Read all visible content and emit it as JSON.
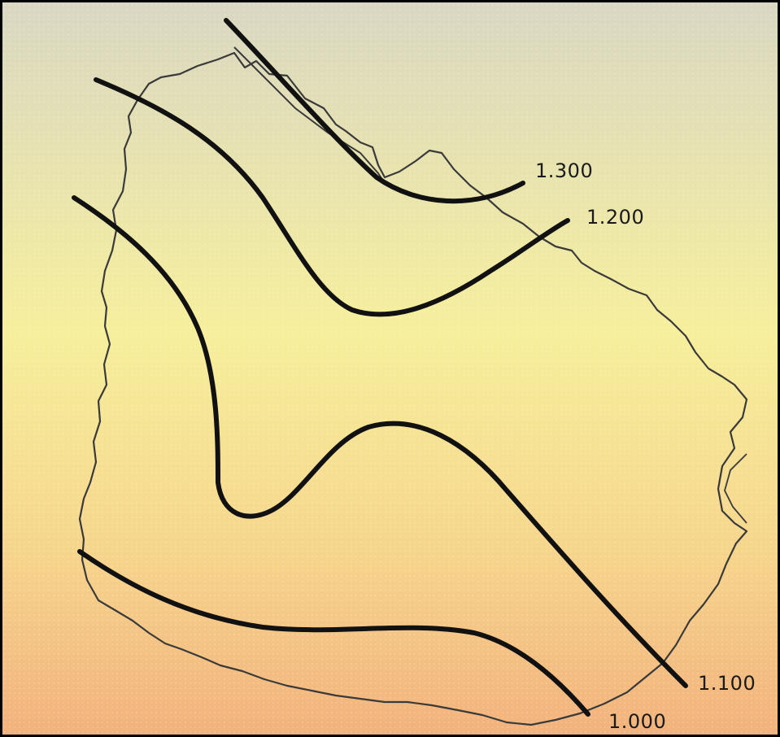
{
  "map": {
    "background_top": "#d9d7c2",
    "background_middle": "#f6ef9c",
    "background_bottom": "#f2b27c",
    "border_color": "#000000",
    "outline_color": "#3a3a3a",
    "isoline_color": "#111111"
  },
  "isolines": [
    {
      "id": "isoline-1300",
      "label": "1.300"
    },
    {
      "id": "isoline-1200",
      "label": "1.200"
    },
    {
      "id": "isoline-1100",
      "label": "1.100"
    },
    {
      "id": "isoline-1000",
      "label": "1.000"
    }
  ]
}
